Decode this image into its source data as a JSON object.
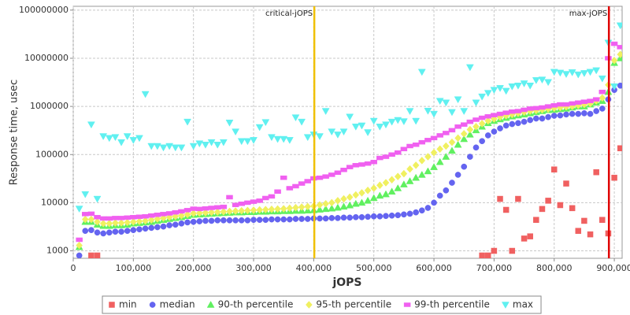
{
  "chart_data": {
    "type": "scatter",
    "x_label": "jOPS",
    "y_label": "Response time, usec",
    "log_y": true,
    "grid": true,
    "legend": "bottom",
    "xlim": [
      0,
      913000
    ],
    "ylim": [
      700,
      120000000
    ],
    "xticks": [
      0,
      {
        "value": 100000,
        "label": "100,000"
      },
      {
        "value": 200000,
        "label": "200,000"
      },
      {
        "value": 300000,
        "label": "300,000"
      },
      {
        "value": 400000,
        "label": "400,000"
      },
      {
        "value": 500000,
        "label": "500,000"
      },
      {
        "value": 600000,
        "label": "600,000"
      },
      {
        "value": 700000,
        "label": "700,000"
      },
      {
        "value": 800000,
        "label": "800,000"
      },
      {
        "value": 900000,
        "label": "900,000"
      }
    ],
    "yticks": [
      1000,
      10000,
      100000,
      1000000,
      10000000,
      100000000
    ],
    "annotations": [
      {
        "label": "critical-jOPS",
        "x": 401000,
        "color": "#f0c000"
      },
      {
        "label": "max-jOPS",
        "x": 891000,
        "color": "#e00000"
      }
    ],
    "x": [
      10000,
      20000,
      30000,
      40000,
      50000,
      60000,
      70000,
      80000,
      90000,
      100000,
      110000,
      120000,
      130000,
      140000,
      150000,
      160000,
      170000,
      180000,
      190000,
      200000,
      210000,
      220000,
      230000,
      240000,
      250000,
      260000,
      270000,
      280000,
      290000,
      300000,
      310000,
      320000,
      330000,
      340000,
      350000,
      360000,
      370000,
      380000,
      390000,
      400000,
      410000,
      420000,
      430000,
      440000,
      450000,
      460000,
      470000,
      480000,
      490000,
      500000,
      510000,
      520000,
      530000,
      540000,
      550000,
      560000,
      570000,
      580000,
      590000,
      600000,
      610000,
      620000,
      630000,
      640000,
      650000,
      660000,
      670000,
      680000,
      690000,
      700000,
      710000,
      720000,
      730000,
      740000,
      750000,
      760000,
      770000,
      780000,
      790000,
      800000,
      810000,
      820000,
      830000,
      840000,
      850000,
      860000,
      870000,
      880000,
      890000,
      900000,
      910000
    ],
    "series": [
      {
        "name": "min",
        "color": "#f06060",
        "marker": "square",
        "values": [
          null,
          null,
          800,
          800,
          null,
          null,
          null,
          null,
          null,
          null,
          null,
          null,
          null,
          null,
          null,
          null,
          null,
          null,
          null,
          null,
          null,
          null,
          null,
          null,
          null,
          null,
          null,
          null,
          null,
          null,
          null,
          null,
          null,
          null,
          null,
          null,
          null,
          null,
          null,
          null,
          null,
          null,
          null,
          null,
          null,
          null,
          null,
          null,
          null,
          null,
          null,
          null,
          null,
          null,
          null,
          null,
          null,
          null,
          null,
          null,
          null,
          null,
          null,
          null,
          null,
          null,
          null,
          800,
          800,
          1000,
          12000,
          7100,
          1000,
          12000,
          1800,
          2000,
          4400,
          7400,
          11000,
          49000,
          8900,
          25000,
          7700,
          2600,
          4200,
          2200,
          43000,
          4400,
          2300,
          33000,
          135000
        ]
      },
      {
        "name": "median",
        "color": "#6464f0",
        "marker": "circle",
        "values": [
          800,
          2600,
          2700,
          2400,
          2300,
          2400,
          2500,
          2500,
          2600,
          2700,
          2800,
          2900,
          3000,
          3100,
          3200,
          3400,
          3500,
          3700,
          3900,
          4000,
          4100,
          4200,
          4200,
          4300,
          4300,
          4300,
          4300,
          4300,
          4300,
          4400,
          4400,
          4400,
          4500,
          4500,
          4500,
          4500,
          4600,
          4600,
          4600,
          4700,
          4700,
          4700,
          4800,
          4800,
          4900,
          4900,
          5000,
          5000,
          5100,
          5200,
          5200,
          5300,
          5400,
          5500,
          5700,
          5900,
          6300,
          6900,
          7800,
          10000,
          14000,
          18000,
          26000,
          38000,
          56000,
          90000,
          140000,
          190000,
          250000,
          300000,
          350000,
          400000,
          430000,
          450000,
          480000,
          520000,
          560000,
          560000,
          600000,
          640000,
          650000,
          680000,
          700000,
          700000,
          720000,
          700000,
          800000,
          900000,
          1400000,
          2200000,
          2700000
        ]
      },
      {
        "name": "90-th percentile",
        "color": "#60f060",
        "marker": "triangle",
        "values": [
          1200,
          4000,
          4000,
          3500,
          3300,
          3300,
          3400,
          3400,
          3500,
          3700,
          3800,
          3900,
          4000,
          4200,
          4400,
          4600,
          4800,
          5000,
          5300,
          5600,
          5700,
          5800,
          5900,
          6000,
          6100,
          6200,
          6300,
          6300,
          6400,
          6400,
          6500,
          6500,
          6600,
          6600,
          6700,
          6700,
          6800,
          6800,
          6900,
          7000,
          7200,
          7400,
          7600,
          7900,
          8300,
          8800,
          9500,
          10000,
          11000,
          12500,
          14000,
          15000,
          17000,
          20000,
          24000,
          28000,
          33000,
          38000,
          45000,
          55000,
          70000,
          90000,
          120000,
          160000,
          210000,
          260000,
          320000,
          380000,
          450000,
          500000,
          540000,
          580000,
          620000,
          650000,
          680000,
          720000,
          760000,
          800000,
          840000,
          850000,
          880000,
          900000,
          950000,
          1000000,
          1000000,
          1100000,
          1200000,
          1300000,
          2000000,
          8000000,
          10000000
        ]
      },
      {
        "name": "95-th percentile",
        "color": "#f0f060",
        "marker": "diamond",
        "values": [
          1300,
          4500,
          4500,
          4000,
          3700,
          3700,
          3800,
          3800,
          3900,
          4000,
          4100,
          4200,
          4400,
          4600,
          4800,
          5000,
          5200,
          5400,
          5700,
          6000,
          6100,
          6200,
          6300,
          6400,
          6500,
          6600,
          6700,
          6800,
          6900,
          7000,
          7100,
          7200,
          7300,
          7400,
          7500,
          7700,
          7900,
          8100,
          8300,
          8500,
          9000,
          9500,
          10000,
          11000,
          12000,
          13000,
          14500,
          16000,
          18000,
          20000,
          23000,
          26000,
          30000,
          35000,
          40000,
          50000,
          60000,
          75000,
          90000,
          110000,
          130000,
          150000,
          180000,
          220000,
          270000,
          330000,
          380000,
          440000,
          500000,
          550000,
          600000,
          640000,
          680000,
          720000,
          760000,
          800000,
          820000,
          850000,
          880000,
          920000,
          950000,
          980000,
          1000000,
          1050000,
          1100000,
          1150000,
          1300000,
          1500000,
          2800000,
          9000000,
          12000000
        ]
      },
      {
        "name": "99-th percentile",
        "color": "#f060f0",
        "marker": "bar",
        "values": [
          1700,
          5800,
          5900,
          5000,
          4700,
          4700,
          4800,
          4800,
          4900,
          5000,
          5100,
          5200,
          5400,
          5600,
          5800,
          6000,
          6300,
          6600,
          7000,
          7500,
          7400,
          7600,
          7800,
          8000,
          8200,
          13000,
          9000,
          9500,
          10000,
          10500,
          11000,
          12500,
          13500,
          17000,
          33000,
          20000,
          22000,
          25000,
          28000,
          32000,
          33000,
          35000,
          38000,
          42000,
          48000,
          55000,
          60000,
          62000,
          65000,
          70000,
          85000,
          90000,
          100000,
          110000,
          130000,
          150000,
          160000,
          180000,
          200000,
          220000,
          250000,
          280000,
          320000,
          380000,
          420000,
          480000,
          530000,
          580000,
          620000,
          660000,
          700000,
          740000,
          780000,
          800000,
          850000,
          900000,
          920000,
          950000,
          1000000,
          1050000,
          1100000,
          1100000,
          1150000,
          1200000,
          1250000,
          1300000,
          1400000,
          2000000,
          10000000,
          20000000,
          17000000
        ]
      },
      {
        "name": "max",
        "color": "#60f0f0",
        "marker": "triangle-down",
        "values": [
          7500,
          15000,
          420000,
          12000,
          240000,
          220000,
          230000,
          180000,
          240000,
          200000,
          220000,
          1800000,
          150000,
          150000,
          140000,
          150000,
          140000,
          140000,
          480000,
          150000,
          170000,
          160000,
          180000,
          160000,
          180000,
          460000,
          300000,
          190000,
          190000,
          200000,
          370000,
          470000,
          230000,
          210000,
          210000,
          200000,
          590000,
          480000,
          230000,
          260000,
          240000,
          800000,
          300000,
          260000,
          300000,
          610000,
          380000,
          400000,
          290000,
          500000,
          380000,
          420000,
          480000,
          520000,
          490000,
          800000,
          500000,
          5200000,
          810000,
          700000,
          1300000,
          1200000,
          760000,
          1400000,
          800000,
          6500000,
          1200000,
          1600000,
          1900000,
          2200000,
          2400000,
          2100000,
          2600000,
          2700000,
          3000000,
          2700000,
          3500000,
          3600000,
          3200000,
          5200000,
          5000000,
          4700000,
          5100000,
          4600000,
          4900000,
          5200000,
          5600000,
          3800000,
          21000000,
          2600000,
          48000000
        ]
      }
    ]
  }
}
